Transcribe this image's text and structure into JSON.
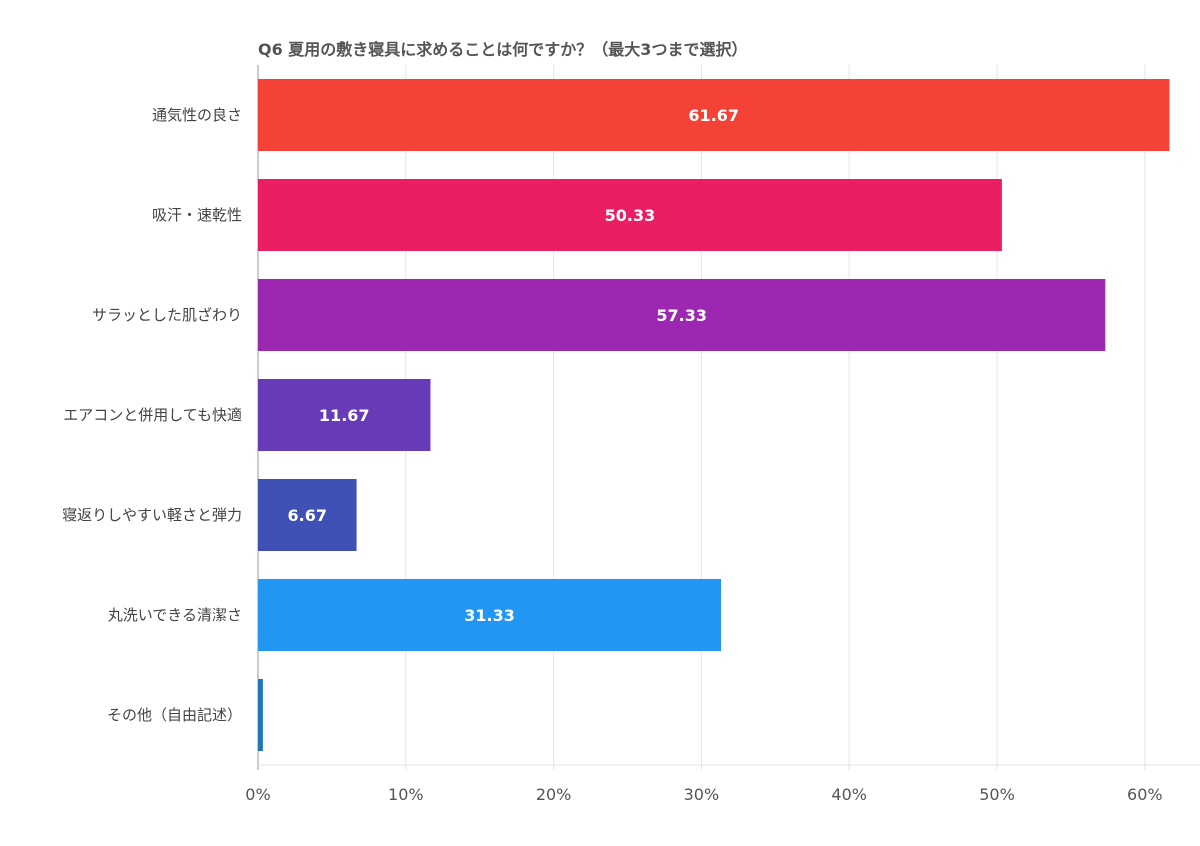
{
  "chart_data": {
    "type": "bar",
    "orientation": "horizontal",
    "title": "Q6 夏用の敷き寝具に求めることは何ですか？（最大3つまで選択）",
    "categories": [
      "通気性の良さ",
      "吸汗・速乾性",
      "サラッとした肌ざわり",
      "エアコンと併用しても快適",
      "寝返りしやすい軽さと弾力",
      "丸洗いできる清潔さ",
      "その他（自由記述）"
    ],
    "values": [
      61.67,
      50.33,
      57.33,
      11.67,
      6.67,
      31.33,
      0.33
    ],
    "data_labels": [
      "61.67",
      "50.33",
      "57.33",
      "11.67",
      "6.67",
      "31.33",
      ""
    ],
    "colors": [
      "#F44336",
      "#E91E63",
      "#9C27B0",
      "#673AB7",
      "#3F51B5",
      "#2196F3",
      "#1F77B4"
    ],
    "xlim": [
      0,
      63.6
    ],
    "xticks": [
      0,
      10,
      20,
      30,
      40,
      50,
      60
    ],
    "xtick_labels": [
      "0%",
      "10%",
      "20%",
      "30%",
      "40%",
      "50%",
      "60%"
    ],
    "xlabel": "",
    "ylabel": "",
    "grid": true,
    "legend": "none"
  }
}
